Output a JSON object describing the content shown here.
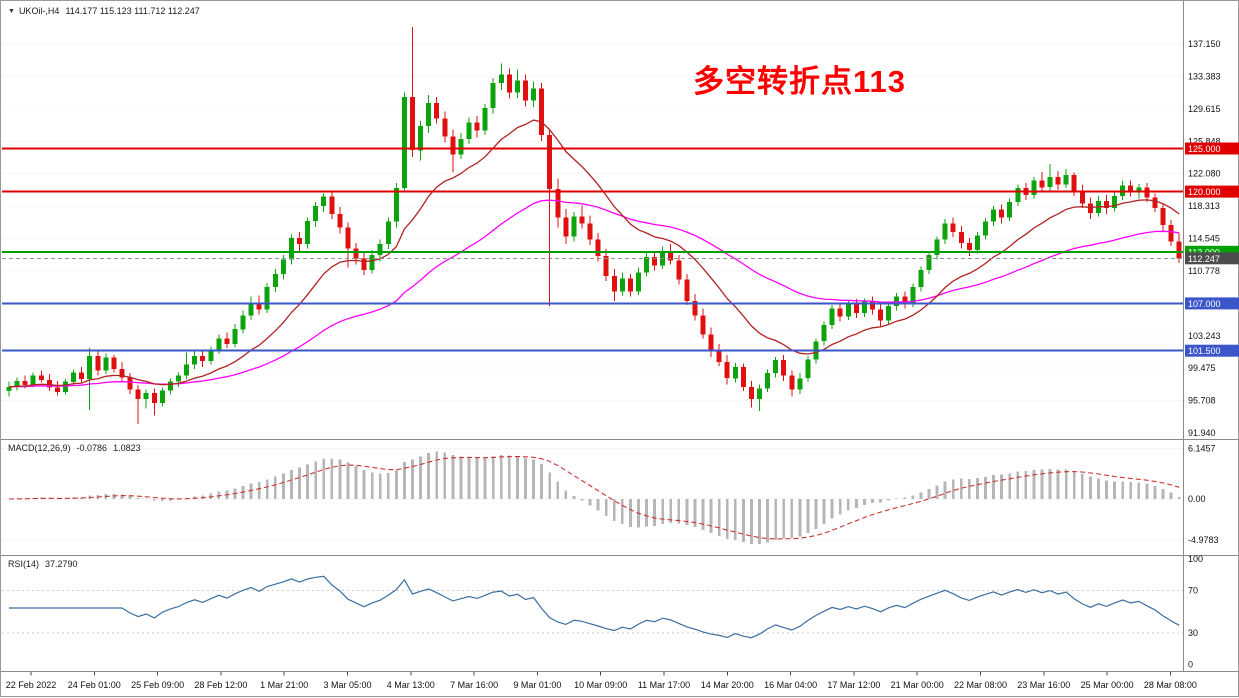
{
  "window": {
    "symbol_tf": "UKOil-,H4",
    "ohlc_text": "114.177 115.123 111.712 112.247",
    "open": "114.177",
    "high": "115.123",
    "low": "111.712",
    "close": "112.247"
  },
  "annotation": {
    "text": "多空转折点113",
    "color": "#ff0000"
  },
  "chart_data": {
    "type": "candlestick",
    "title": "UKOil-,H4",
    "colors": {
      "bull": "#0ca30c",
      "bear": "#e01010",
      "grid": "#e2e2e2",
      "axis_text": "#111111",
      "separator": "#8a8a8a",
      "background": "#ffffff"
    },
    "price_axis": {
      "labels": [
        "137.150",
        "133.383",
        "129.615",
        "125.848",
        "122.080",
        "118.313",
        "114.545",
        "110.778",
        "107.010",
        "103.243",
        "99.475",
        "95.708",
        "91.940"
      ],
      "values": [
        137.15,
        133.3825,
        129.615,
        125.8475,
        122.08,
        118.3125,
        114.545,
        110.7775,
        107.01,
        103.2425,
        99.475,
        95.7075,
        91.94
      ],
      "min": 91.35,
      "max": 141.0
    },
    "time_axis": {
      "labels": [
        "22 Feb 2022",
        "24 Feb 01:00",
        "25 Feb 09:00",
        "28 Feb 12:00",
        "1 Mar 21:00",
        "3 Mar 05:00",
        "4 Mar 13:00",
        "7 Mar 16:00",
        "9 Mar 01:00",
        "10 Mar 09:00",
        "11 Mar 17:00",
        "14 Mar 20:00",
        "16 Mar 04:00",
        "17 Mar 12:00",
        "21 Mar 00:00",
        "22 Mar 08:00",
        "23 Mar 16:00",
        "25 Mar 00:00",
        "28 Mar 08:00"
      ],
      "candles_per_label": 8
    },
    "levels": [
      {
        "value": 125.0,
        "label": "125.000",
        "color": "#e00000"
      },
      {
        "value": 120.0,
        "label": "120.000",
        "color": "#e00000"
      },
      {
        "value": 113.0,
        "label": "113.000",
        "color": "#00a000"
      },
      {
        "value": 107.0,
        "label": "107.000",
        "color": "#3a56c8"
      },
      {
        "value": 101.5,
        "label": "101.500",
        "color": "#3a56c8"
      }
    ],
    "current_price": {
      "value": 112.247,
      "label": "112.247",
      "tag_color": "#4d4d4d",
      "line_color": "#909090"
    },
    "moving_averages": [
      {
        "name": "fast",
        "period": 16,
        "color": "#b22222"
      },
      {
        "name": "slow",
        "period": 48,
        "color": "#ff00ff"
      }
    ],
    "candles": [
      [
        96.8,
        97.9,
        96.2,
        97.3
      ],
      [
        97.3,
        98.4,
        96.9,
        98.0
      ],
      [
        98.0,
        98.6,
        97.1,
        97.5
      ],
      [
        97.5,
        99.0,
        97.2,
        98.6
      ],
      [
        98.6,
        99.2,
        97.8,
        98.1
      ],
      [
        98.1,
        98.8,
        96.8,
        97.2
      ],
      [
        97.2,
        98.0,
        96.3,
        96.7
      ],
      [
        96.7,
        98.2,
        96.4,
        97.9
      ],
      [
        97.9,
        99.3,
        97.5,
        99.0
      ],
      [
        99.0,
        99.6,
        97.8,
        98.2
      ],
      [
        98.2,
        101.8,
        94.6,
        100.9
      ],
      [
        100.9,
        101.5,
        98.6,
        99.2
      ],
      [
        99.2,
        101.2,
        98.8,
        100.7
      ],
      [
        100.7,
        101.0,
        99.0,
        99.4
      ],
      [
        99.4,
        100.2,
        98.0,
        98.4
      ],
      [
        98.4,
        98.9,
        96.5,
        97.0
      ],
      [
        97.0,
        97.5,
        93.0,
        95.9
      ],
      [
        95.9,
        97.0,
        94.8,
        96.6
      ],
      [
        96.6,
        97.1,
        94.0,
        95.4
      ],
      [
        95.4,
        97.2,
        95.0,
        96.9
      ],
      [
        96.9,
        98.3,
        96.4,
        97.9
      ],
      [
        97.9,
        99.0,
        97.3,
        98.6
      ],
      [
        98.6,
        101.3,
        98.2,
        99.9
      ],
      [
        99.9,
        101.6,
        99.4,
        100.9
      ],
      [
        100.9,
        101.4,
        99.6,
        100.3
      ],
      [
        100.3,
        102.0,
        99.9,
        101.6
      ],
      [
        101.6,
        103.4,
        101.1,
        102.9
      ],
      [
        102.9,
        103.6,
        101.8,
        102.3
      ],
      [
        102.3,
        104.6,
        101.9,
        104.0
      ],
      [
        104.0,
        106.2,
        103.5,
        105.6
      ],
      [
        105.6,
        107.8,
        105.1,
        107.1
      ],
      [
        107.1,
        107.9,
        105.7,
        106.3
      ],
      [
        106.3,
        109.4,
        105.9,
        108.9
      ],
      [
        108.9,
        111.0,
        108.3,
        110.4
      ],
      [
        110.4,
        112.6,
        109.8,
        112.1
      ],
      [
        112.1,
        115.0,
        111.5,
        114.6
      ],
      [
        114.6,
        115.3,
        113.0,
        113.9
      ],
      [
        113.9,
        117.0,
        113.4,
        116.6
      ],
      [
        116.6,
        118.8,
        115.9,
        118.3
      ],
      [
        118.3,
        119.8,
        117.6,
        119.4
      ],
      [
        119.4,
        119.9,
        116.8,
        117.4
      ],
      [
        117.4,
        118.2,
        115.1,
        115.8
      ],
      [
        115.8,
        116.4,
        111.2,
        113.4
      ],
      [
        113.4,
        114.0,
        111.5,
        112.2
      ],
      [
        112.2,
        113.1,
        110.3,
        110.9
      ],
      [
        110.9,
        113.2,
        110.5,
        112.6
      ],
      [
        112.6,
        114.4,
        111.9,
        113.9
      ],
      [
        113.9,
        117.0,
        113.3,
        116.5
      ],
      [
        116.5,
        121.0,
        115.8,
        120.4
      ],
      [
        120.4,
        131.5,
        119.9,
        131.0
      ],
      [
        131.0,
        139.1,
        124.0,
        124.8
      ],
      [
        124.8,
        128.2,
        123.6,
        127.6
      ],
      [
        127.6,
        131.2,
        126.8,
        130.3
      ],
      [
        130.3,
        131.0,
        127.9,
        128.5
      ],
      [
        128.5,
        129.3,
        125.7,
        126.4
      ],
      [
        126.4,
        127.2,
        122.2,
        124.3
      ],
      [
        124.3,
        126.8,
        123.8,
        126.1
      ],
      [
        126.1,
        128.6,
        125.5,
        128.0
      ],
      [
        128.0,
        128.8,
        126.3,
        127.1
      ],
      [
        127.1,
        130.2,
        126.6,
        129.7
      ],
      [
        129.7,
        133.2,
        129.1,
        132.6
      ],
      [
        132.6,
        134.9,
        131.8,
        133.6
      ],
      [
        133.6,
        134.3,
        130.8,
        131.5
      ],
      [
        131.5,
        134.2,
        130.9,
        132.9
      ],
      [
        132.9,
        133.6,
        129.9,
        130.6
      ],
      [
        130.6,
        132.8,
        129.8,
        132.0
      ],
      [
        132.0,
        132.6,
        125.9,
        126.6
      ],
      [
        126.6,
        127.3,
        106.7,
        120.3
      ],
      [
        120.3,
        121.5,
        115.8,
        117.0
      ],
      [
        117.0,
        118.0,
        113.9,
        114.8
      ],
      [
        114.8,
        117.6,
        114.2,
        117.1
      ],
      [
        117.1,
        118.4,
        115.7,
        116.3
      ],
      [
        116.3,
        117.2,
        113.8,
        114.4
      ],
      [
        114.4,
        115.2,
        111.9,
        112.5
      ],
      [
        112.5,
        113.3,
        109.6,
        110.2
      ],
      [
        110.2,
        111.0,
        107.3,
        108.4
      ],
      [
        108.4,
        110.6,
        107.9,
        109.9
      ],
      [
        109.9,
        110.4,
        107.8,
        108.4
      ],
      [
        108.4,
        111.2,
        108.0,
        110.6
      ],
      [
        110.6,
        112.9,
        110.1,
        112.4
      ],
      [
        112.4,
        113.1,
        110.8,
        111.4
      ],
      [
        111.4,
        113.6,
        111.0,
        113.1
      ],
      [
        113.1,
        113.9,
        111.5,
        112.0
      ],
      [
        112.0,
        112.6,
        109.2,
        109.8
      ],
      [
        109.8,
        110.4,
        106.8,
        107.3
      ],
      [
        107.3,
        108.1,
        105.0,
        105.6
      ],
      [
        105.6,
        106.4,
        102.9,
        103.4
      ],
      [
        103.4,
        104.2,
        100.8,
        101.4
      ],
      [
        101.4,
        102.3,
        99.7,
        100.2
      ],
      [
        100.2,
        101.0,
        97.6,
        98.3
      ],
      [
        98.3,
        100.1,
        97.8,
        99.6
      ],
      [
        99.6,
        100.0,
        96.8,
        97.3
      ],
      [
        97.3,
        98.0,
        94.9,
        95.9
      ],
      [
        95.9,
        97.6,
        94.5,
        97.1
      ],
      [
        97.1,
        99.3,
        96.7,
        98.9
      ],
      [
        98.9,
        100.8,
        98.4,
        100.4
      ],
      [
        100.4,
        101.0,
        98.0,
        98.6
      ],
      [
        98.6,
        99.2,
        96.2,
        97.0
      ],
      [
        97.0,
        98.9,
        96.5,
        98.3
      ],
      [
        98.3,
        100.9,
        97.9,
        100.5
      ],
      [
        100.5,
        102.9,
        100.0,
        102.6
      ],
      [
        102.6,
        104.9,
        102.1,
        104.5
      ],
      [
        104.5,
        106.8,
        104.0,
        106.4
      ],
      [
        106.4,
        107.0,
        104.9,
        105.5
      ],
      [
        105.5,
        107.3,
        105.1,
        106.9
      ],
      [
        106.9,
        107.5,
        105.3,
        105.9
      ],
      [
        105.9,
        107.6,
        105.4,
        107.2
      ],
      [
        107.2,
        107.8,
        105.7,
        106.3
      ],
      [
        106.3,
        107.0,
        104.3,
        105.0
      ],
      [
        105.0,
        107.1,
        104.6,
        106.7
      ],
      [
        106.7,
        108.2,
        106.2,
        107.8
      ],
      [
        107.8,
        108.4,
        106.4,
        107.0
      ],
      [
        107.0,
        109.3,
        106.6,
        108.9
      ],
      [
        108.9,
        111.3,
        108.4,
        110.9
      ],
      [
        110.9,
        113.0,
        110.4,
        112.6
      ],
      [
        112.6,
        114.8,
        112.1,
        114.4
      ],
      [
        114.4,
        116.8,
        113.9,
        116.3
      ],
      [
        116.3,
        117.0,
        114.7,
        115.3
      ],
      [
        115.3,
        116.0,
        113.4,
        114.0
      ],
      [
        114.0,
        114.6,
        112.5,
        113.2
      ],
      [
        113.2,
        115.3,
        112.8,
        114.9
      ],
      [
        114.9,
        116.9,
        114.4,
        116.5
      ],
      [
        116.5,
        118.3,
        116.0,
        117.9
      ],
      [
        117.9,
        118.5,
        116.3,
        117.0
      ],
      [
        117.0,
        119.2,
        116.6,
        118.8
      ],
      [
        118.8,
        120.8,
        118.3,
        120.4
      ],
      [
        120.4,
        121.0,
        119.0,
        119.6
      ],
      [
        119.6,
        121.7,
        119.2,
        121.3
      ],
      [
        121.3,
        122.3,
        119.9,
        120.5
      ],
      [
        120.5,
        123.2,
        120.1,
        121.7
      ],
      [
        121.7,
        122.4,
        120.2,
        120.8
      ],
      [
        120.8,
        122.6,
        120.4,
        121.9
      ],
      [
        121.9,
        122.2,
        119.5,
        120.1
      ],
      [
        120.1,
        120.8,
        118.1,
        118.6
      ],
      [
        118.6,
        119.3,
        116.8,
        117.5
      ],
      [
        117.5,
        119.5,
        117.1,
        118.9
      ],
      [
        118.9,
        119.6,
        117.4,
        118.1
      ],
      [
        118.1,
        120.0,
        117.7,
        119.5
      ],
      [
        119.5,
        121.2,
        119.0,
        120.7
      ],
      [
        120.7,
        121.3,
        119.4,
        119.9
      ],
      [
        119.9,
        120.9,
        119.2,
        120.5
      ],
      [
        120.5,
        121.0,
        118.8,
        119.3
      ],
      [
        119.3,
        119.8,
        117.6,
        118.1
      ],
      [
        118.1,
        118.6,
        115.4,
        116.1
      ],
      [
        116.1,
        116.7,
        113.7,
        114.2
      ],
      [
        114.177,
        115.123,
        111.712,
        112.247
      ]
    ],
    "indicators": {
      "macd": {
        "name": "MACD(12,26,9)",
        "fast": 12,
        "slow": 26,
        "signal": 9,
        "value_main": "-0.0786",
        "value_signal": "1.0823",
        "axis_labels": [
          "6.1457",
          "0.00",
          "-4.9783"
        ],
        "axis_values": [
          6.1457,
          0,
          -4.9783
        ],
        "histogram_color": "#b6b6b6",
        "signal_color": "#cc3333"
      },
      "rsi": {
        "name": "RSI(14)",
        "period": 14,
        "value": "37.2790",
        "color": "#3b6fa0",
        "axis_labels": [
          "100",
          "70",
          "30",
          "0"
        ],
        "axis_values": [
          100,
          70,
          30,
          0
        ],
        "level_values": [
          70,
          30
        ]
      }
    }
  }
}
